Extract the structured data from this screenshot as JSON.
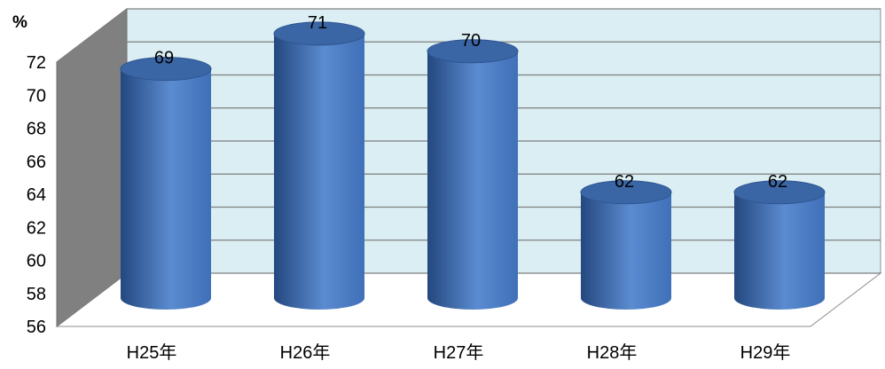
{
  "chart_data": {
    "type": "bar",
    "style": "3d-cylinder",
    "unit_label": "%",
    "categories": [
      "H25年",
      "H26年",
      "H27年",
      "H28年",
      "H29年"
    ],
    "values": [
      69,
      71,
      70,
      62,
      62
    ],
    "data_labels": [
      "69",
      "71",
      "70",
      "62",
      "62"
    ],
    "y_ticks": [
      56,
      58,
      60,
      62,
      64,
      66,
      68,
      70,
      72
    ],
    "ylim": [
      56,
      72
    ],
    "grid": true,
    "legend": "none",
    "colors": {
      "bar_light": "#5B8BD0",
      "bar_mid": "#3F70B8",
      "bar_dark": "#24487F",
      "bar_top": "#3A66A6",
      "back_wall": "#DAEEF3",
      "side_wall": "#808080",
      "gridline": "#7F7F7F"
    }
  }
}
